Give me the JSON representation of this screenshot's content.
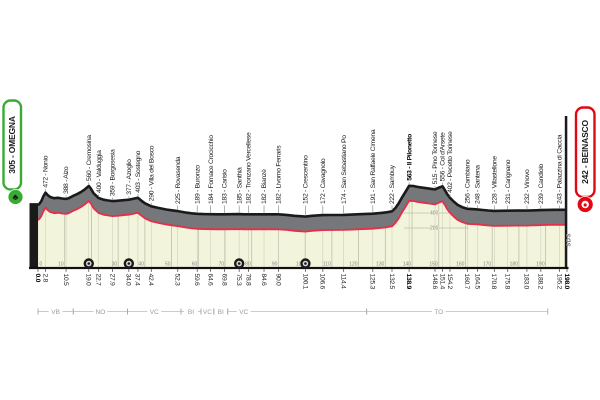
{
  "start": {
    "label": "305 - OMEGNA",
    "color": "#3aaa35",
    "icon": "start-trefoil-icon",
    "icon_glyph": "♣"
  },
  "finish": {
    "label": "242 - BEINASCO",
    "color": "#e30613",
    "icon": "finish-badge-icon"
  },
  "signature": "SDS",
  "chart_data": {
    "type": "area",
    "title": "",
    "x_unit": "km",
    "y_unit": "m",
    "total_km": 198,
    "x_ticks": [
      0,
      10,
      20,
      30,
      40,
      50,
      60,
      70,
      80,
      90,
      100,
      110,
      120,
      130,
      140,
      150,
      160,
      170,
      180,
      190
    ],
    "elevation_lines": {
      "values": [
        400,
        200
      ]
    },
    "markers_km": [
      19,
      34,
      75.3,
      100.1
    ],
    "colors": {
      "area_fill": "#f3f4dc",
      "band": "#76777a",
      "edge": "#1a1a1a",
      "line": "#e62e48",
      "grid": "#bcc0a8",
      "grid_light": "#cdd0bd",
      "axis": "#111111",
      "leader": "#8f8f8f"
    },
    "waypoints": [
      {
        "km": 0.0,
        "elev": 305,
        "name": "",
        "bold": true
      },
      {
        "km": 2.8,
        "elev": 472,
        "name": "Nonio"
      },
      {
        "km": 10.5,
        "elev": 388,
        "name": "Alzo"
      },
      {
        "km": 19.0,
        "elev": 560,
        "name": "Cremosina"
      },
      {
        "km": 22.7,
        "elev": 400,
        "name": "Valduggia"
      },
      {
        "km": 27.9,
        "elev": 359,
        "name": "Borgosesia"
      },
      {
        "km": 34.0,
        "elev": 377,
        "name": "Azoglio"
      },
      {
        "km": 37.4,
        "elev": 403,
        "name": "Sostegno"
      },
      {
        "km": 42.4,
        "elev": 290,
        "name": "Villa del Bosco"
      },
      {
        "km": 52.3,
        "elev": 225,
        "name": "Rovasenda"
      },
      {
        "km": 59.6,
        "elev": 189,
        "name": "Buronzo"
      },
      {
        "km": 64.6,
        "elev": 184,
        "name": "Fornace Crocicchio"
      },
      {
        "km": 69.8,
        "elev": 183,
        "name": "Carisio"
      },
      {
        "km": 75.3,
        "elev": 185,
        "name": "Santhià"
      },
      {
        "km": 78.8,
        "elev": 182,
        "name": "Tronzano Vercellese"
      },
      {
        "km": 84.6,
        "elev": 182,
        "name": "Bianzè"
      },
      {
        "km": 90.0,
        "elev": 182,
        "name": "Livorno Ferraris"
      },
      {
        "km": 100.1,
        "elev": 152,
        "name": "Crescentino"
      },
      {
        "km": 106.6,
        "elev": 172,
        "name": "Cavagnolo"
      },
      {
        "km": 114.4,
        "elev": 174,
        "name": "San Sebastiano Po"
      },
      {
        "km": 125.3,
        "elev": 191,
        "name": "San Raffaele Cimena"
      },
      {
        "km": 132.5,
        "elev": 222,
        "name": "Sambuy"
      },
      {
        "km": 138.9,
        "elev": 563,
        "name": "Il Pilonetto",
        "bold": true
      },
      {
        "km": 148.6,
        "elev": 515,
        "name": "Pino Torinese"
      },
      {
        "km": 151.4,
        "elev": 556,
        "name": "Col d'Arsete"
      },
      {
        "km": 154.2,
        "elev": 402,
        "name": "Pecetto Torinese"
      },
      {
        "km": 160.7,
        "elev": 256,
        "name": "Cambiano"
      },
      {
        "km": 164.5,
        "elev": 248,
        "name": "Santena"
      },
      {
        "km": 170.8,
        "elev": 228,
        "name": "Villastellone"
      },
      {
        "km": 175.8,
        "elev": 231,
        "name": "Carignano"
      },
      {
        "km": 183.0,
        "elev": 232,
        "name": "Vinovo"
      },
      {
        "km": 188.2,
        "elev": 239,
        "name": "Candiolo"
      },
      {
        "km": 195.2,
        "elev": 243,
        "name": "Palazzina di Caccia"
      },
      {
        "km": 198.0,
        "elev": 242,
        "name": "",
        "bold": true
      }
    ],
    "provinces": [
      {
        "label": "VB",
        "from": 0,
        "to": 13.2
      },
      {
        "label": "NO",
        "from": 13.2,
        "to": 33.5
      },
      {
        "label": "VC",
        "from": 33.5,
        "to": 53.5
      },
      {
        "label": "BI",
        "from": 53.5,
        "to": 61
      },
      {
        "label": "VC",
        "from": 61,
        "to": 65.8
      },
      {
        "label": "BI",
        "from": 65.8,
        "to": 71
      },
      {
        "label": "VC",
        "from": 71,
        "to": 123,
        "label_km": 77
      },
      {
        "label": "TO",
        "from": 123,
        "to": 190.8,
        "label_km": 150
      }
    ],
    "profile": [
      [
        0,
        305
      ],
      [
        0.4,
        318
      ],
      [
        1.2,
        355
      ],
      [
        2,
        420
      ],
      [
        2.8,
        472
      ],
      [
        3.6,
        440
      ],
      [
        4.5,
        415
      ],
      [
        6,
        398
      ],
      [
        7.5,
        402
      ],
      [
        9,
        393
      ],
      [
        10.5,
        388
      ],
      [
        11.5,
        398
      ],
      [
        13,
        425
      ],
      [
        14.5,
        450
      ],
      [
        16,
        478
      ],
      [
        17.5,
        515
      ],
      [
        19,
        560
      ],
      [
        19.8,
        525
      ],
      [
        20.8,
        462
      ],
      [
        22.7,
        400
      ],
      [
        24.5,
        378
      ],
      [
        26,
        368
      ],
      [
        27.9,
        359
      ],
      [
        29.5,
        362
      ],
      [
        31.5,
        369
      ],
      [
        34,
        377
      ],
      [
        35.5,
        388
      ],
      [
        37.4,
        403
      ],
      [
        38.5,
        370
      ],
      [
        40,
        330
      ],
      [
        42.4,
        290
      ],
      [
        45,
        268
      ],
      [
        48,
        247
      ],
      [
        50,
        236
      ],
      [
        52.3,
        225
      ],
      [
        55,
        208
      ],
      [
        57.5,
        196
      ],
      [
        59.6,
        189
      ],
      [
        62,
        186
      ],
      [
        64.6,
        184
      ],
      [
        67,
        183
      ],
      [
        69.8,
        183
      ],
      [
        72.5,
        184
      ],
      [
        75.3,
        185
      ],
      [
        77,
        183
      ],
      [
        78.8,
        182
      ],
      [
        81.5,
        182
      ],
      [
        84.6,
        182
      ],
      [
        87,
        182
      ],
      [
        90,
        182
      ],
      [
        93,
        174
      ],
      [
        96,
        163
      ],
      [
        100.1,
        152
      ],
      [
        102.5,
        163
      ],
      [
        106.6,
        172
      ],
      [
        110,
        173
      ],
      [
        114.4,
        174
      ],
      [
        117.5,
        179
      ],
      [
        120.5,
        184
      ],
      [
        125.3,
        191
      ],
      [
        128.5,
        201
      ],
      [
        130.5,
        210
      ],
      [
        132.5,
        222
      ],
      [
        133.8,
        268
      ],
      [
        135,
        330
      ],
      [
        136.2,
        405
      ],
      [
        137.5,
        480
      ],
      [
        138.9,
        563
      ],
      [
        140.5,
        560
      ],
      [
        142,
        548
      ],
      [
        144,
        538
      ],
      [
        146,
        528
      ],
      [
        148.6,
        515
      ],
      [
        149.8,
        535
      ],
      [
        151.4,
        556
      ],
      [
        152.3,
        505
      ],
      [
        153.2,
        450
      ],
      [
        154.2,
        402
      ],
      [
        155.5,
        355
      ],
      [
        157,
        310
      ],
      [
        158.8,
        278
      ],
      [
        160.7,
        256
      ],
      [
        162.5,
        252
      ],
      [
        164.5,
        248
      ],
      [
        166.5,
        240
      ],
      [
        168.5,
        233
      ],
      [
        170.8,
        228
      ],
      [
        173,
        229
      ],
      [
        175.8,
        231
      ],
      [
        179,
        232
      ],
      [
        181,
        232
      ],
      [
        183,
        232
      ],
      [
        185,
        234
      ],
      [
        186.5,
        236
      ],
      [
        188.2,
        239
      ],
      [
        191,
        241
      ],
      [
        193,
        242
      ],
      [
        195.2,
        243
      ],
      [
        198,
        242
      ]
    ]
  }
}
